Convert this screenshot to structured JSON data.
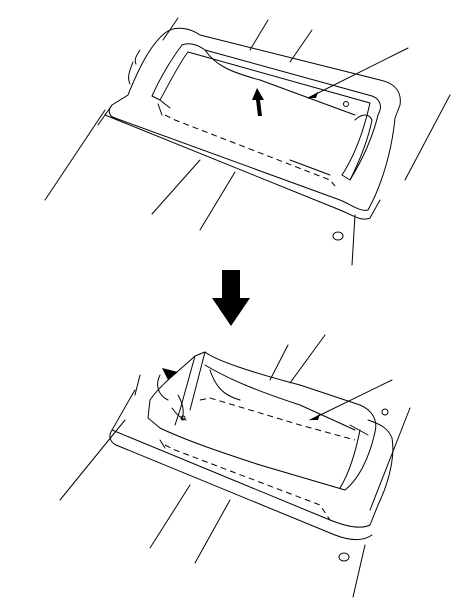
{
  "figure": {
    "panels": [
      {
        "id": "top",
        "state": "tray closed, lift direction indicated"
      },
      {
        "id": "bottom",
        "state": "tray opened, swung forward"
      }
    ],
    "step_arrow": "down-arrow",
    "colors": {
      "line": "#000000",
      "background": "#ffffff"
    }
  }
}
